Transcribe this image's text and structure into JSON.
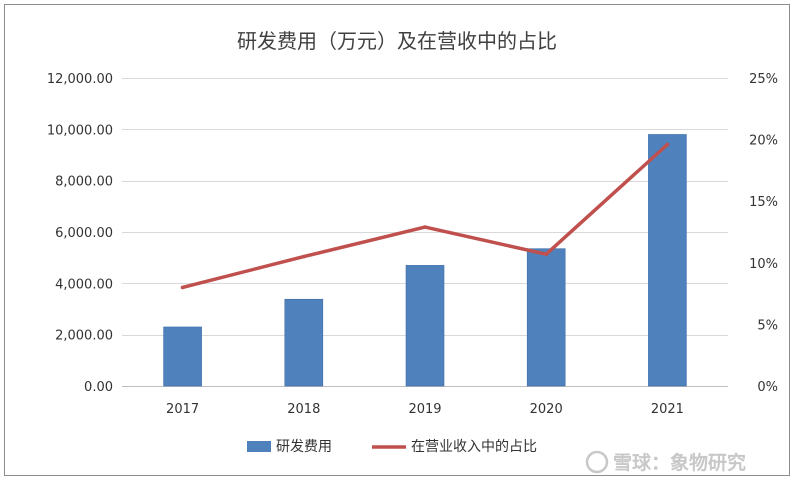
{
  "chart_data": {
    "type": "bar",
    "title": "研发费用（万元）及在营收中的占比",
    "categories": [
      "2017",
      "2018",
      "2019",
      "2020",
      "2021"
    ],
    "series": [
      {
        "name": "研发费用",
        "type": "bar",
        "axis": "left",
        "color": "#4f81bd",
        "values": [
          2300,
          3380,
          4700,
          5350,
          9800
        ]
      },
      {
        "name": "在营业收入中的占比",
        "type": "line",
        "axis": "right",
        "color": "#c0504d",
        "values": [
          8.0,
          10.5,
          12.9,
          10.7,
          19.6
        ]
      }
    ],
    "y_left": {
      "min": 0,
      "max": 12000,
      "ticks": [
        0,
        2000,
        4000,
        6000,
        8000,
        10000,
        12000
      ],
      "tick_labels": [
        "0.00",
        "2,000.00",
        "4,000.00",
        "6,000.00",
        "8,000.00",
        "10,000.00",
        "12,000.00"
      ]
    },
    "y_right": {
      "min": 0,
      "max": 25,
      "ticks": [
        0,
        5,
        10,
        15,
        20,
        25
      ],
      "tick_labels": [
        "0%",
        "5%",
        "10%",
        "15%",
        "20%",
        "25%"
      ]
    },
    "grid": true,
    "legend_position": "bottom"
  },
  "watermark": {
    "text": "雪球：象物研究"
  }
}
